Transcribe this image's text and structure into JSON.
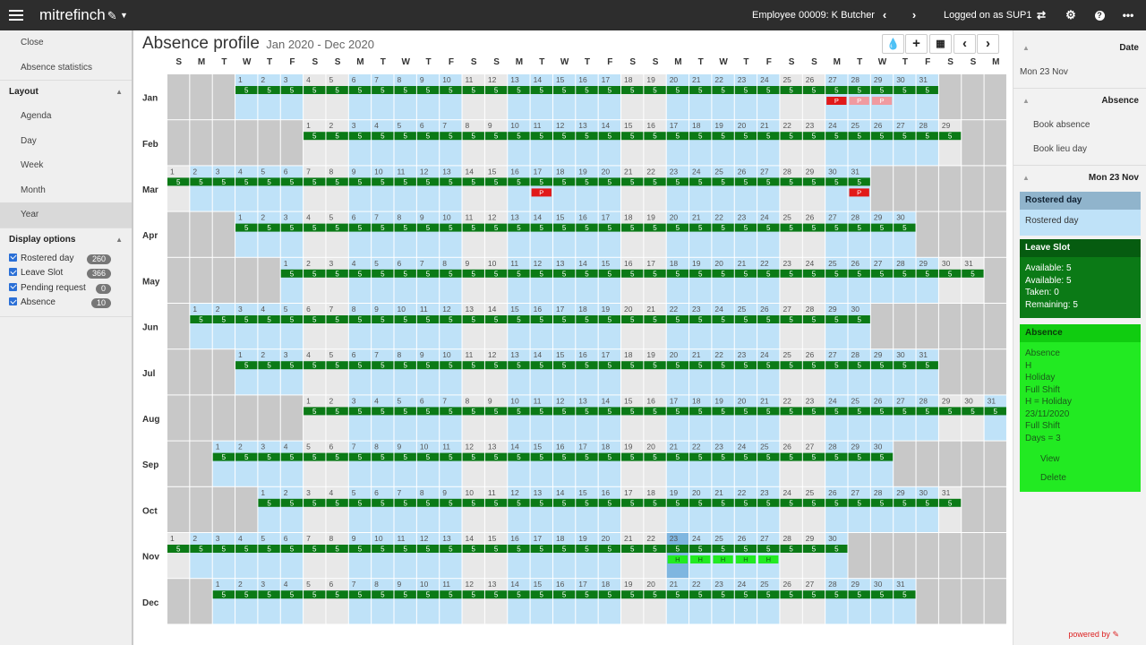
{
  "topbar": {
    "brand": "mitrefinch",
    "employee": "Employee 00009: K Butcher",
    "logged_in": "Logged on as SUP1",
    "icons": [
      "menu-icon",
      "pen-icon",
      "caret-down-icon",
      "chevron-left-icon",
      "chevron-right-icon",
      "swap-icon",
      "gear-icon",
      "help-icon",
      "more-icon"
    ]
  },
  "sidebar": {
    "top_items": [
      "Close",
      "Absence statistics"
    ],
    "layout_label": "Layout",
    "layout_items": [
      "Agenda",
      "Day",
      "Week",
      "Month",
      "Year"
    ],
    "active_layout": "Year",
    "display_label": "Display options",
    "options": [
      {
        "label": "Rostered day",
        "count": "260"
      },
      {
        "label": "Leave Slot",
        "count": "366"
      },
      {
        "label": "Pending request",
        "count": "0"
      },
      {
        "label": "Absence",
        "count": "10"
      }
    ]
  },
  "main": {
    "title": "Absence profile",
    "range": "Jan 2020 - Dec 2020",
    "tools": [
      "drop-icon",
      "plus-icon",
      "calendar-icon",
      "chevron-left-icon",
      "chevron-right-icon"
    ]
  },
  "calendar": {
    "year": 2020,
    "weekday_headers": [
      "S",
      "M",
      "T",
      "W",
      "T",
      "F",
      "S",
      "S",
      "M",
      "T",
      "W",
      "T",
      "F",
      "S",
      "S",
      "M",
      "T",
      "W",
      "T",
      "F",
      "S",
      "S",
      "M",
      "T",
      "W",
      "T",
      "F",
      "S",
      "S",
      "M",
      "T",
      "W",
      "T",
      "F",
      "S",
      "S",
      "M"
    ],
    "months": [
      "Jan",
      "Feb",
      "Mar",
      "Apr",
      "May",
      "Jun",
      "Jul",
      "Aug",
      "Sep",
      "Oct",
      "Nov",
      "Dec"
    ],
    "slot_value": "5",
    "pending_label": "P",
    "holiday_label": "H",
    "pending_days": [
      {
        "month": 1,
        "day": 27,
        "style": "red"
      },
      {
        "month": 1,
        "day": 28,
        "style": "pink"
      },
      {
        "month": 1,
        "day": 29,
        "style": "pink"
      },
      {
        "month": 3,
        "day": 17,
        "style": "red"
      },
      {
        "month": 3,
        "day": 31,
        "style": "red"
      }
    ],
    "holiday_days": [
      {
        "month": 11,
        "day": 23
      },
      {
        "month": 11,
        "day": 24
      },
      {
        "month": 11,
        "day": 25
      },
      {
        "month": 11,
        "day": 26
      },
      {
        "month": 11,
        "day": 27
      }
    ],
    "selected": {
      "month": 11,
      "day": 23
    },
    "colors": {
      "rostered": "#bfe2f8",
      "weekend": "#e8e8e8",
      "blank": "#c8c8c8",
      "slot": "#0b7a16",
      "pending": "#e11919",
      "pending_light": "#f09aa0",
      "holiday": "#22ea22",
      "selected": "#7fb6e0"
    }
  },
  "right_panel": {
    "date_label": "Date",
    "date_value": "Mon 23 Nov",
    "absence_label": "Absence",
    "absence_items": [
      "Book absence",
      "Book lieu day"
    ],
    "day_label": "Mon 23 Nov",
    "rostered": {
      "title": "Rostered day",
      "line": "Rostered day"
    },
    "leave": {
      "title": "Leave Slot",
      "lines": [
        "Available: 5",
        "Available: 5",
        "Taken: 0",
        "Remaining: 5"
      ]
    },
    "absence": {
      "title": "Absence",
      "lines": [
        "Absence",
        "H",
        "Holiday",
        "Full Shift",
        "H = Holiday",
        "23/11/2020",
        "Full Shift",
        "Days = 3"
      ],
      "actions": [
        "View",
        "Delete"
      ]
    },
    "powered": "powered by"
  }
}
